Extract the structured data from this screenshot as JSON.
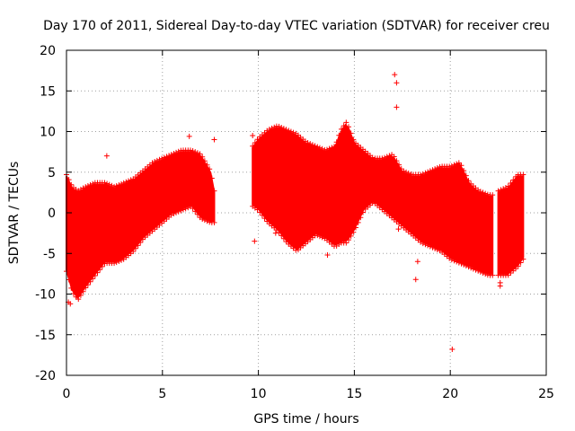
{
  "chart_data": {
    "type": "scatter",
    "title": "Day 170 of 2011, Sidereal Day-to-day VTEC variation (SDTVAR) for receiver creu",
    "xlabel": "GPS time / hours",
    "ylabel": "SDTVAR / TECUs",
    "xlim": [
      0,
      25
    ],
    "ylim": [
      -20,
      20
    ],
    "xticks": [
      0,
      5,
      10,
      15,
      20,
      25
    ],
    "yticks": [
      -20,
      -15,
      -10,
      -5,
      0,
      5,
      10,
      15,
      20
    ],
    "grid": true,
    "marker": "+",
    "color": "#ff0000",
    "series": [
      {
        "name": "SDTVAR",
        "note": "dense band of points; envelope approximated from figure",
        "x": [
          0.0,
          0.3,
          0.6,
          1.0,
          1.5,
          2.0,
          2.5,
          3.0,
          3.5,
          4.0,
          4.5,
          5.0,
          5.5,
          6.0,
          6.5,
          7.0,
          7.5,
          7.7
        ],
        "upper": [
          4.5,
          3.0,
          2.5,
          3.0,
          3.5,
          3.5,
          3.0,
          3.5,
          4.0,
          5.0,
          6.0,
          6.5,
          7.0,
          7.5,
          7.5,
          7.0,
          5.0,
          2.5
        ],
        "lower": [
          -7.0,
          -9.5,
          -10.5,
          -9.0,
          -7.5,
          -6.0,
          -6.0,
          -5.5,
          -4.5,
          -3.0,
          -2.0,
          -1.0,
          0.0,
          0.5,
          1.0,
          -0.5,
          -1.0,
          -1.0
        ]
      },
      {
        "name": "SDTVAR",
        "x": [
          9.7,
          10.0,
          10.5,
          11.0,
          11.5,
          12.0,
          12.5,
          13.0,
          13.5,
          14.0,
          14.3,
          14.6,
          15.0,
          15.5,
          16.0,
          16.5,
          17.0,
          17.5,
          18.0,
          18.5,
          19.0,
          19.5,
          20.0,
          20.5,
          21.0,
          21.5,
          22.0,
          22.2
        ],
        "upper": [
          8.0,
          9.0,
          10.0,
          10.5,
          10.0,
          9.5,
          8.5,
          8.0,
          7.5,
          8.0,
          10.0,
          11.0,
          8.5,
          7.5,
          6.5,
          6.5,
          7.0,
          5.0,
          4.5,
          4.5,
          5.0,
          5.5,
          5.5,
          6.0,
          3.5,
          2.5,
          2.0,
          2.0
        ],
        "lower": [
          1.0,
          0.5,
          -1.0,
          -2.0,
          -3.5,
          -4.5,
          -3.5,
          -2.5,
          -3.0,
          -4.0,
          -3.5,
          -3.5,
          -2.0,
          0.5,
          1.5,
          0.5,
          -0.5,
          -1.5,
          -2.5,
          -3.5,
          -4.0,
          -4.5,
          -5.5,
          -6.0,
          -6.5,
          -7.0,
          -7.5,
          -7.5
        ]
      },
      {
        "name": "SDTVAR",
        "x": [
          22.5,
          23.0,
          23.5,
          23.8
        ],
        "upper": [
          2.5,
          3.0,
          4.5,
          4.5
        ],
        "lower": [
          -7.5,
          -7.5,
          -6.5,
          -5.5
        ]
      }
    ],
    "outliers": [
      [
        7.7,
        9.0
      ],
      [
        9.7,
        9.5
      ],
      [
        9.8,
        -3.5
      ],
      [
        10.9,
        -0.8
      ],
      [
        10.9,
        -2.5
      ],
      [
        17.1,
        17.0
      ],
      [
        17.2,
        16.0
      ],
      [
        17.2,
        13.0
      ],
      [
        18.2,
        -8.2
      ],
      [
        18.3,
        -6.0
      ],
      [
        20.1,
        -16.8
      ],
      [
        22.6,
        -9.0
      ],
      [
        22.6,
        -8.6
      ],
      [
        6.4,
        9.4
      ],
      [
        2.1,
        7.0
      ],
      [
        0.1,
        -11.0
      ],
      [
        0.2,
        -11.2
      ],
      [
        13.6,
        -5.2
      ],
      [
        17.3,
        -2.0
      ]
    ]
  }
}
